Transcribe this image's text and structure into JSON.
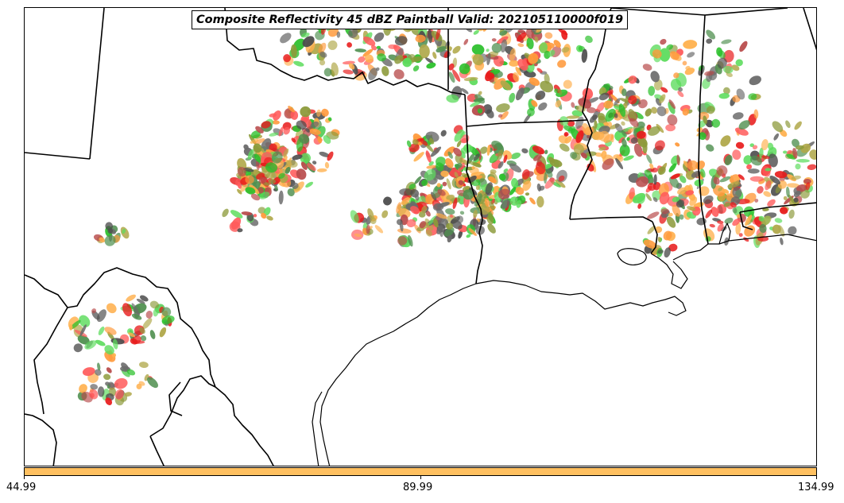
{
  "title": "Composite Reflectivity 45 dBZ Paintball Valid: 202105110000f019",
  "colors": {
    "member_palette": [
      "#ff5a5a",
      "#e81c1c",
      "#ff9a3c",
      "#ffb04d",
      "#5cdc5c",
      "#2bc02b",
      "#4f8f4f",
      "#b0a84a",
      "#8c9a3a",
      "#b84a4a",
      "#4d4d4d",
      "#6a6a6a"
    ],
    "colorbar_fill": "#ffc060",
    "border": "#000000"
  },
  "colorbar": {
    "ticks": [
      "44.99",
      "89.99",
      "134.99"
    ]
  }
}
